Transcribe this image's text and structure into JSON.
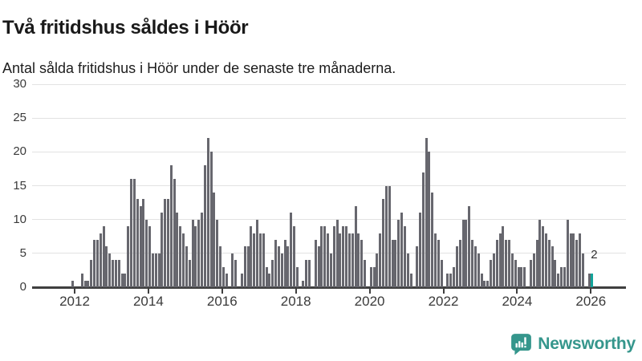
{
  "header": {
    "title": "Två fritidshus såldes i Höör",
    "subtitle": "Antal sålda fritidshus i Höör under de senaste tre månaderna."
  },
  "footer": {
    "brand_name": "Newsworthy",
    "brand_icon": "bar-chart-speech-bubble-icon",
    "brand_color": "#35968C"
  },
  "chart_data": {
    "type": "bar",
    "title": "Två fritidshus såldes i Höör",
    "subtitle": "Antal sålda fritidshus i Höör under de senaste tre månaderna.",
    "x_start_month": "2011-12",
    "x_frequency": "monthly",
    "x_tick_labels": [
      "2012",
      "2014",
      "2016",
      "2018",
      "2020",
      "2022",
      "2024",
      "2026"
    ],
    "y_tick_labels": [
      "0",
      "5",
      "10",
      "15",
      "20",
      "25",
      "30"
    ],
    "y_ticks": [
      0,
      5,
      10,
      15,
      20,
      25,
      30
    ],
    "ylim": [
      0,
      30
    ],
    "grid": "horizontal",
    "legend": "none",
    "bar_color": "#67676E",
    "highlight_color": "#12A39A",
    "highlight_index": 169,
    "annotation": {
      "text": "2"
    },
    "values": [
      1,
      0,
      0,
      2,
      1,
      1,
      4,
      7,
      7,
      8,
      9,
      6,
      5,
      4,
      4,
      4,
      2,
      2,
      9,
      16,
      16,
      13,
      12,
      13,
      10,
      9,
      5,
      5,
      5,
      11,
      13,
      13,
      18,
      16,
      11,
      9,
      8,
      6,
      4,
      10,
      9,
      10,
      11,
      18,
      22,
      20,
      14,
      10,
      6,
      3,
      2,
      0,
      5,
      4,
      0,
      2,
      6,
      6,
      9,
      8,
      10,
      8,
      8,
      3,
      2,
      4,
      7,
      6,
      5,
      7,
      6,
      11,
      9,
      3,
      0,
      1,
      4,
      4,
      0,
      7,
      6,
      9,
      9,
      8,
      5,
      9,
      10,
      8,
      9,
      9,
      8,
      8,
      12,
      8,
      7,
      4,
      0,
      3,
      3,
      5,
      8,
      13,
      15,
      15,
      7,
      7,
      10,
      11,
      9,
      5,
      2,
      0,
      6,
      11,
      17,
      22,
      20,
      14,
      8,
      7,
      4,
      0,
      2,
      2,
      3,
      6,
      7,
      10,
      10,
      12,
      7,
      6,
      5,
      2,
      1,
      1,
      4,
      5,
      7,
      8,
      9,
      7,
      7,
      5,
      4,
      3,
      3,
      3,
      0,
      4,
      5,
      7,
      10,
      9,
      8,
      7,
      6,
      4,
      2,
      3,
      3,
      10,
      8,
      8,
      7,
      8,
      5,
      0,
      2,
      2
    ]
  }
}
